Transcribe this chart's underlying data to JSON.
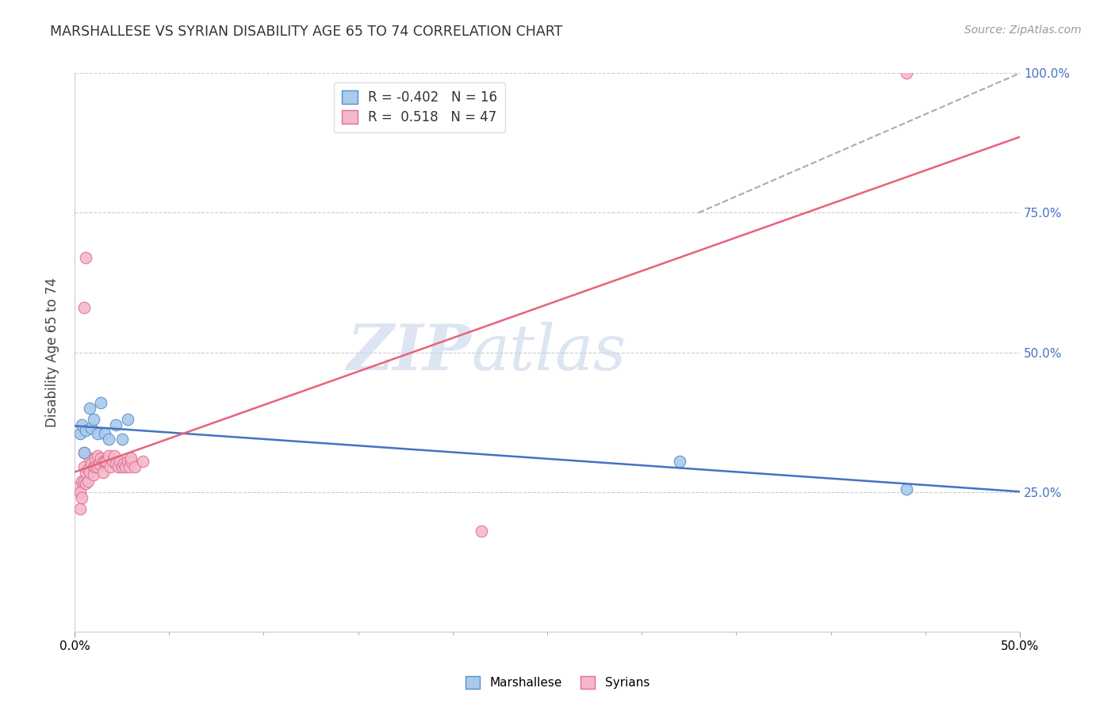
{
  "title": "MARSHALLESE VS SYRIAN DISABILITY AGE 65 TO 74 CORRELATION CHART",
  "source": "Source: ZipAtlas.com",
  "ylabel": "Disability Age 65 to 74",
  "xlim": [
    0.0,
    0.5
  ],
  "ylim": [
    0.0,
    1.0
  ],
  "yticks": [
    0.0,
    0.25,
    0.5,
    0.75,
    1.0
  ],
  "ytick_labels": [
    "",
    "25.0%",
    "50.0%",
    "75.0%",
    "100.0%"
  ],
  "marshallese_x": [
    0.003,
    0.004,
    0.005,
    0.006,
    0.008,
    0.009,
    0.01,
    0.012,
    0.014,
    0.016,
    0.018,
    0.022,
    0.025,
    0.028,
    0.44,
    0.32
  ],
  "marshallese_y": [
    0.355,
    0.37,
    0.32,
    0.36,
    0.4,
    0.365,
    0.38,
    0.355,
    0.41,
    0.355,
    0.345,
    0.37,
    0.345,
    0.38,
    0.255,
    0.305
  ],
  "syrian_x": [
    0.002,
    0.003,
    0.003,
    0.004,
    0.004,
    0.005,
    0.005,
    0.005,
    0.006,
    0.006,
    0.007,
    0.007,
    0.008,
    0.008,
    0.009,
    0.01,
    0.01,
    0.011,
    0.011,
    0.012,
    0.012,
    0.013,
    0.014,
    0.015,
    0.015,
    0.016,
    0.017,
    0.018,
    0.019,
    0.02,
    0.021,
    0.022,
    0.023,
    0.024,
    0.025,
    0.026,
    0.027,
    0.028,
    0.029,
    0.03,
    0.03,
    0.032,
    0.036,
    0.215,
    0.005,
    0.006,
    0.44
  ],
  "syrian_y": [
    0.26,
    0.25,
    0.22,
    0.27,
    0.24,
    0.32,
    0.295,
    0.27,
    0.285,
    0.265,
    0.29,
    0.27,
    0.31,
    0.285,
    0.3,
    0.295,
    0.28,
    0.31,
    0.295,
    0.315,
    0.295,
    0.3,
    0.31,
    0.285,
    0.305,
    0.305,
    0.305,
    0.315,
    0.295,
    0.305,
    0.315,
    0.3,
    0.295,
    0.305,
    0.295,
    0.3,
    0.295,
    0.305,
    0.295,
    0.305,
    0.31,
    0.295,
    0.305,
    0.18,
    0.58,
    0.67,
    1.0
  ],
  "marshallese_color": "#A8CAEC",
  "syrian_color": "#F4B8CA",
  "marshallese_edge_color": "#5B8EC9",
  "syrian_edge_color": "#E07090",
  "marshallese_line_color": "#4472C4",
  "syrian_line_color": "#E8627A",
  "marshallese_R": -0.402,
  "marshallese_N": 16,
  "syrian_R": 0.518,
  "syrian_N": 47,
  "watermark_zip": "ZIP",
  "watermark_atlas": "atlas",
  "watermark_color_zip": "#C5D5E8",
  "watermark_color_atlas": "#C5D5E8",
  "ref_line_x": [
    0.33,
    0.5
  ],
  "ref_line_y": [
    0.75,
    1.0
  ],
  "ref_line_color": "#AAAAAA",
  "blue_label_color": "#4472C4",
  "legend_R_color": "#E8627A",
  "legend_N_color": "#333333"
}
